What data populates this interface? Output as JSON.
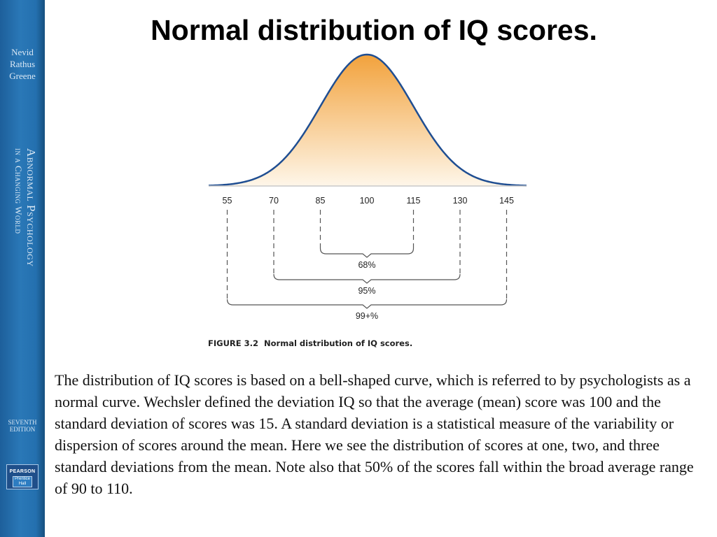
{
  "spine": {
    "authors": [
      "Nevid",
      "Rathus",
      "Greene"
    ],
    "book_title_line1": "Abnormal Psychology",
    "book_title_line2": "in a Changing World",
    "edition": [
      "SEVENTH",
      "EDITION"
    ],
    "publisher_logo": [
      "PEARSON",
      "Prentice Hall"
    ]
  },
  "slide_title": "Normal distribution of IQ scores.",
  "figure": {
    "caption_label": "FIGURE 3.2",
    "caption_text": "Normal distribution of IQ scores.",
    "scores": [
      "55",
      "70",
      "85",
      "100",
      "115",
      "130",
      "145"
    ],
    "ranges": [
      {
        "label": "68%",
        "from": 85,
        "to": 115
      },
      {
        "label": "95%",
        "from": 70,
        "to": 130
      },
      {
        "label": "99+%",
        "from": 55,
        "to": 145
      }
    ],
    "colors": {
      "curve_stroke": "#1f4e92",
      "fill_top": "#f2a23c",
      "fill_bottom": "#fef6e9"
    }
  },
  "body_text": "The distribution of IQ scores is based on a bell-shaped curve, which is referred to by psychologists as a normal curve. Wechsler defined the deviation IQ so that the average (mean) score was 100 and the standard deviation of scores was 15. A standard deviation is a statistical measure of the variability or dispersion of scores around the mean. Here we see the distribution of scores at one, two, and three standard deviations from the mean. Note also that 50% of the scores fall within the broad average range of 90 to 110."
}
